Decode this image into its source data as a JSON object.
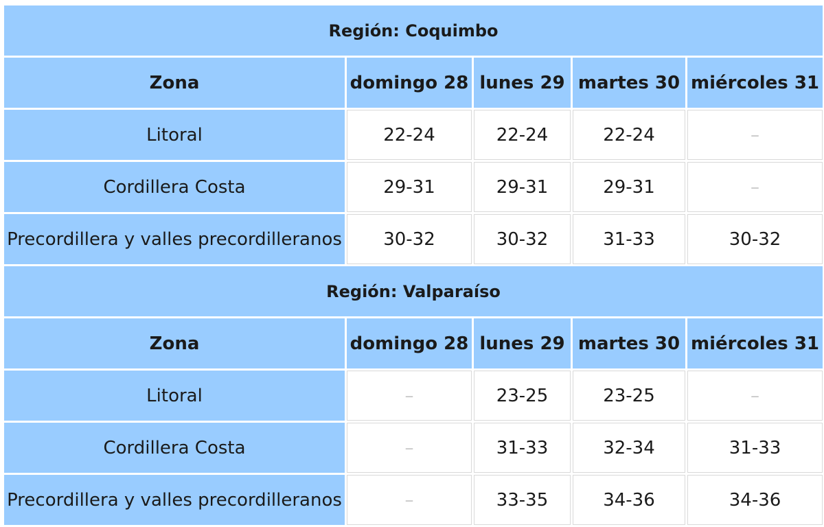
{
  "tables": [
    {
      "region_title": "Región: Coquimbo",
      "headers": [
        "Zona",
        "domingo 28",
        "lunes 29",
        "martes 30",
        "miércoles 31"
      ],
      "rows": [
        {
          "zona": "Litoral",
          "values": [
            "22-24",
            "22-24",
            "22-24",
            "–"
          ]
        },
        {
          "zona": "Cordillera Costa",
          "values": [
            "29-31",
            "29-31",
            "29-31",
            "–"
          ]
        },
        {
          "zona": "Precordillera y valles precordilleranos",
          "values": [
            "30-32",
            "30-32",
            "31-33",
            "30-32"
          ]
        }
      ]
    },
    {
      "region_title": "Región: Valparaíso",
      "headers": [
        "Zona",
        "domingo 28",
        "lunes 29",
        "martes 30",
        "miércoles 31"
      ],
      "rows": [
        {
          "zona": "Litoral",
          "values": [
            "–",
            "23-25",
            "23-25",
            "–"
          ]
        },
        {
          "zona": "Cordillera Costa",
          "values": [
            "–",
            "31-33",
            "32-34",
            "31-33"
          ]
        },
        {
          "zona": "Precordillera y valles precordilleranos",
          "values": [
            "–",
            "33-35",
            "34-36",
            "34-36"
          ]
        }
      ]
    }
  ],
  "colors": {
    "header_bg": "#99ccff",
    "cell_bg": "#ffffff",
    "empty_text": "#c8c8c8"
  }
}
